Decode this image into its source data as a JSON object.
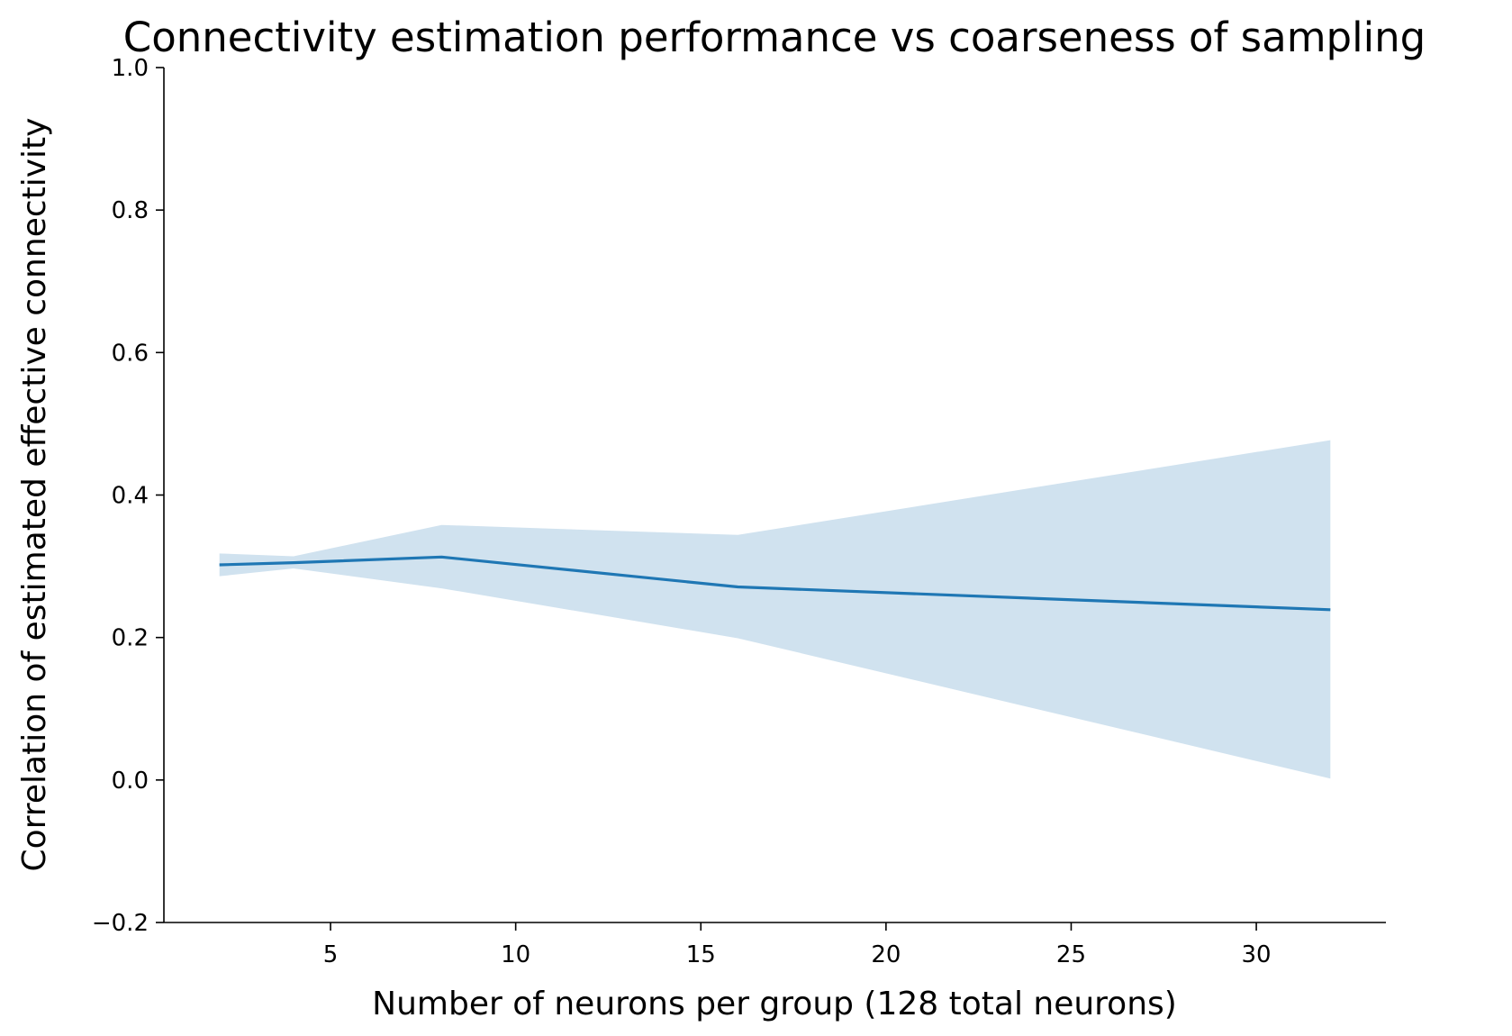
{
  "chart_data": {
    "type": "line",
    "title": "Connectivity estimation performance vs coarseness of sampling",
    "xlabel": "Number of neurons per group (128 total neurons)",
    "ylabel": "Correlation of estimated effective connectivity",
    "xlim": [
      0.5,
      33.5
    ],
    "ylim": [
      -0.2,
      1.0
    ],
    "xticks": [
      5,
      10,
      15,
      20,
      25,
      30
    ],
    "yticks": [
      -0.2,
      0.0,
      0.2,
      0.4,
      0.6,
      0.8,
      1.0
    ],
    "xtick_labels": [
      "5",
      "10",
      "15",
      "20",
      "25",
      "30"
    ],
    "ytick_labels": [
      "−0.2",
      "0.0",
      "0.2",
      "0.4",
      "0.6",
      "0.8",
      "1.0"
    ],
    "grid": false,
    "series": [
      {
        "x": [
          2,
          4,
          8,
          16,
          32
        ],
        "values": [
          0.302,
          0.305,
          0.313,
          0.271,
          0.239
        ],
        "lower": [
          0.286,
          0.297,
          0.269,
          0.199,
          0.002
        ],
        "upper": [
          0.318,
          0.314,
          0.358,
          0.344,
          0.477
        ],
        "color": "#1f77b4",
        "band_color": "#d0e2ef"
      }
    ]
  }
}
